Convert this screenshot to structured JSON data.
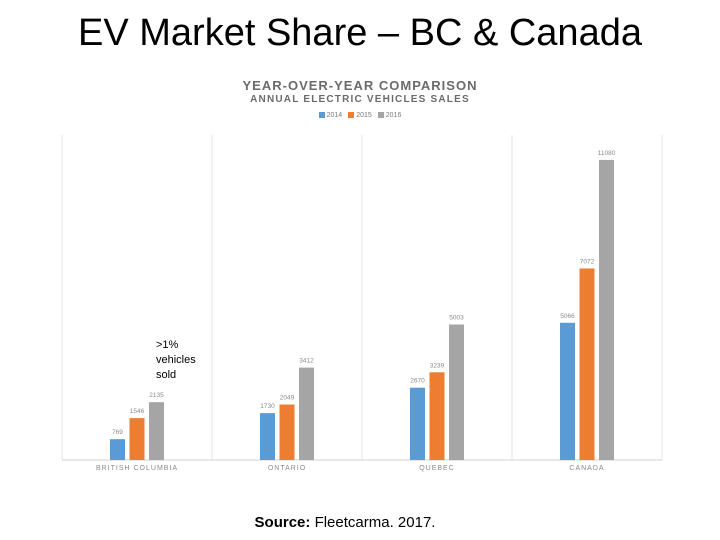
{
  "slide": {
    "title": "EV Market Share – BC & Canada",
    "note": ">1% vehicles sold",
    "source_label": "Source:",
    "source_text": "Fleetcarma. 2017."
  },
  "chart_data": {
    "type": "bar",
    "title": "YEAR-OVER-YEAR COMPARISON",
    "subtitle": "ANNUAL ELECTRIC VEHICLES SALES",
    "categories": [
      "BRITISH COLUMBIA",
      "ONTARIO",
      "QUEBEC",
      "CANADA"
    ],
    "series": [
      {
        "name": "2014",
        "color": "#5b9bd5",
        "values": [
          769,
          1730,
          2670,
          5066
        ]
      },
      {
        "name": "2015",
        "color": "#ed7d31",
        "values": [
          1546,
          2049,
          3239,
          7072
        ]
      },
      {
        "name": "2016",
        "color": "#a5a5a5",
        "values": [
          2135,
          3412,
          5003,
          11080
        ]
      }
    ],
    "ylim": [
      0,
      12000
    ],
    "grid": false,
    "legend_position": "top"
  }
}
